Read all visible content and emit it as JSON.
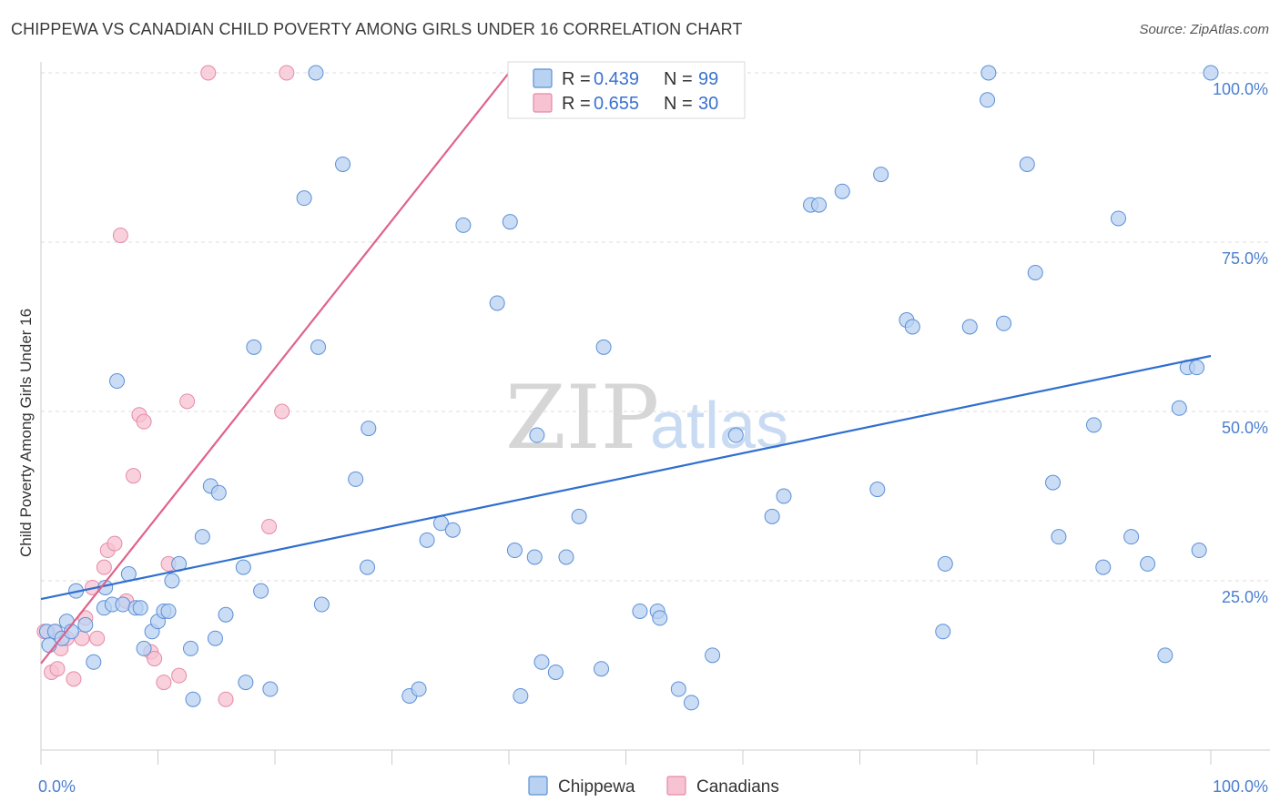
{
  "title": "CHIPPEWA VS CANADIAN CHILD POVERTY AMONG GIRLS UNDER 16 CORRELATION CHART",
  "source": "Source: ZipAtlas.com",
  "watermark": {
    "part1": "ZIP",
    "part2": "atlas"
  },
  "colors": {
    "chippewa_fill": "#b9d2f2",
    "chippewa_stroke": "#5b8fd6",
    "chippewa_line": "#2f6fcf",
    "canadians_fill": "#f7c2d2",
    "canadians_stroke": "#e58aa8",
    "canadians_line": "#e0628a",
    "tick_text": "#4a7fd1",
    "grid": "#dddddd"
  },
  "legend": {
    "rows": [
      {
        "series": "Chippewa",
        "r_label": "R =",
        "r_value": "0.439",
        "n_label": "N =",
        "n_value": "99"
      },
      {
        "series": "Canadians",
        "r_label": "R =",
        "r_value": "0.655",
        "n_label": "N =",
        "n_value": "30"
      }
    ]
  },
  "chart_data": {
    "type": "scatter",
    "title": "CHIPPEWA VS CANADIAN CHILD POVERTY AMONG GIRLS UNDER 16 CORRELATION CHART",
    "xlabel": "",
    "ylabel": "Child Poverty Among Girls Under 16",
    "xlim": [
      0,
      100
    ],
    "ylim": [
      0,
      100
    ],
    "x_tick_labels": [
      {
        "value": 0,
        "label": "0.0%"
      },
      {
        "value": 100,
        "label": "100.0%"
      }
    ],
    "y_tick_labels": [
      {
        "value": 25,
        "label": "25.0%"
      },
      {
        "value": 50,
        "label": "50.0%"
      },
      {
        "value": 75,
        "label": "75.0%"
      },
      {
        "value": 100,
        "label": "100.0%"
      }
    ],
    "grid": true,
    "legend_position": "top-center",
    "series": [
      {
        "name": "Chippewa",
        "points": [
          [
            0.5,
            17.5
          ],
          [
            0.7,
            15.5
          ],
          [
            1.2,
            17.5
          ],
          [
            1.8,
            16.5
          ],
          [
            2.2,
            19
          ],
          [
            2.6,
            17.5
          ],
          [
            3.0,
            23.5
          ],
          [
            3.8,
            18.5
          ],
          [
            4.5,
            13
          ],
          [
            5.5,
            24
          ],
          [
            5.4,
            21
          ],
          [
            6.1,
            21.5
          ],
          [
            6.5,
            54.5
          ],
          [
            7.0,
            21.5
          ],
          [
            7.5,
            26
          ],
          [
            8.1,
            21
          ],
          [
            8.5,
            21
          ],
          [
            8.8,
            15
          ],
          [
            9.5,
            17.5
          ],
          [
            10.0,
            19
          ],
          [
            10.5,
            20.5
          ],
          [
            10.9,
            20.5
          ],
          [
            11.2,
            25
          ],
          [
            11.8,
            27.5
          ],
          [
            12.8,
            15
          ],
          [
            13.0,
            7.5
          ],
          [
            13.8,
            31.5
          ],
          [
            14.5,
            39
          ],
          [
            14.9,
            16.5
          ],
          [
            15.2,
            38
          ],
          [
            15.8,
            20
          ],
          [
            17.3,
            27
          ],
          [
            17.5,
            10
          ],
          [
            18.2,
            59.5
          ],
          [
            18.8,
            23.5
          ],
          [
            19.6,
            9
          ],
          [
            22.5,
            81.5
          ],
          [
            23.5,
            100
          ],
          [
            23.7,
            59.5
          ],
          [
            24.0,
            21.5
          ],
          [
            25.8,
            86.5
          ],
          [
            26.9,
            40
          ],
          [
            27.9,
            27
          ],
          [
            28.0,
            47.5
          ],
          [
            31.5,
            8
          ],
          [
            32.3,
            9
          ],
          [
            33.0,
            31
          ],
          [
            34.2,
            33.5
          ],
          [
            35.2,
            32.5
          ],
          [
            36.1,
            77.5
          ],
          [
            39.0,
            66
          ],
          [
            40.1,
            78
          ],
          [
            40.5,
            29.5
          ],
          [
            41.0,
            8
          ],
          [
            42.2,
            28.5
          ],
          [
            42.4,
            46.5
          ],
          [
            42.8,
            13
          ],
          [
            44.0,
            11.5
          ],
          [
            44.9,
            28.5
          ],
          [
            46.0,
            34.5
          ],
          [
            47.9,
            12
          ],
          [
            48.1,
            59.5
          ],
          [
            51.2,
            20.5
          ],
          [
            52.7,
            20.5
          ],
          [
            52.9,
            19.5
          ],
          [
            54.5,
            9
          ],
          [
            55.6,
            7
          ],
          [
            57.4,
            14
          ],
          [
            59.4,
            46.5
          ],
          [
            62.5,
            34.5
          ],
          [
            63.5,
            37.5
          ],
          [
            65.8,
            80.5
          ],
          [
            66.5,
            80.5
          ],
          [
            68.5,
            82.5
          ],
          [
            71.5,
            38.5
          ],
          [
            71.8,
            85
          ],
          [
            74.0,
            63.5
          ],
          [
            74.5,
            62.5
          ],
          [
            77.1,
            17.5
          ],
          [
            77.3,
            27.5
          ],
          [
            79.4,
            62.5
          ],
          [
            80.9,
            96
          ],
          [
            81.0,
            100
          ],
          [
            82.3,
            63
          ],
          [
            84.3,
            86.5
          ],
          [
            85.0,
            70.5
          ],
          [
            86.5,
            39.5
          ],
          [
            87.0,
            31.5
          ],
          [
            90.0,
            48
          ],
          [
            90.8,
            27
          ],
          [
            92.1,
            78.5
          ],
          [
            93.2,
            31.5
          ],
          [
            94.6,
            27.5
          ],
          [
            96.1,
            14
          ],
          [
            97.3,
            50.5
          ],
          [
            98.0,
            56.5
          ],
          [
            98.8,
            56.5
          ],
          [
            99.0,
            29.5
          ],
          [
            100.0,
            100
          ]
        ],
        "trendline": {
          "x": [
            0,
            100
          ],
          "y": [
            22.3,
            58.2
          ]
        }
      },
      {
        "name": "Canadians",
        "points": [
          [
            0.3,
            17.5
          ],
          [
            0.9,
            11.5
          ],
          [
            1.2,
            17.5
          ],
          [
            1.4,
            12
          ],
          [
            1.7,
            15
          ],
          [
            2.2,
            16.5
          ],
          [
            2.8,
            10.5
          ],
          [
            3.5,
            16.5
          ],
          [
            3.8,
            19.5
          ],
          [
            4.4,
            24
          ],
          [
            4.8,
            16.5
          ],
          [
            5.4,
            27
          ],
          [
            5.7,
            29.5
          ],
          [
            6.3,
            30.5
          ],
          [
            6.8,
            76
          ],
          [
            7.3,
            22
          ],
          [
            7.9,
            40.5
          ],
          [
            8.4,
            49.5
          ],
          [
            8.8,
            48.5
          ],
          [
            9.4,
            14.5
          ],
          [
            9.7,
            13.5
          ],
          [
            10.5,
            10
          ],
          [
            10.9,
            27.5
          ],
          [
            11.8,
            11
          ],
          [
            12.5,
            51.5
          ],
          [
            14.3,
            100
          ],
          [
            15.8,
            7.5
          ],
          [
            19.5,
            33
          ],
          [
            20.6,
            50
          ],
          [
            21.0,
            100
          ]
        ],
        "trendline": {
          "x": [
            0,
            40
          ],
          "y": [
            12.8,
            100
          ]
        }
      }
    ]
  },
  "bottom_legend": [
    {
      "series": "Chippewa",
      "label": "Chippewa"
    },
    {
      "series": "Canadians",
      "label": "Canadians"
    }
  ]
}
